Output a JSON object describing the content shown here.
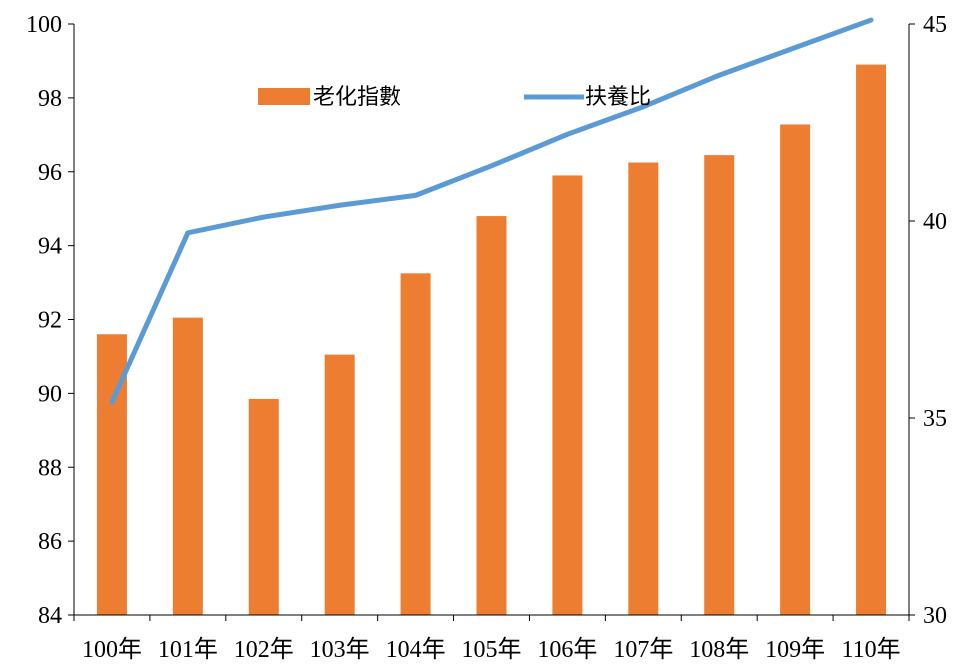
{
  "chart_data": {
    "type": "bar",
    "categories": [
      "100年",
      "101年",
      "102年",
      "103年",
      "104年",
      "105年",
      "106年",
      "107年",
      "108年",
      "109年",
      "110年"
    ],
    "series": [
      {
        "name": "老化指數",
        "type": "bar",
        "axis": "left",
        "color": "#ED7D31",
        "values": [
          91.6,
          92.05,
          89.85,
          91.05,
          93.25,
          94.8,
          95.9,
          96.25,
          96.45,
          97.28,
          98.9
        ]
      },
      {
        "name": "扶養比",
        "type": "line",
        "axis": "right",
        "color": "#5B9BD5",
        "values": [
          35.4,
          39.7,
          40.1,
          40.4,
          40.65,
          41.4,
          42.2,
          42.9,
          43.7,
          44.4,
          45.1
        ]
      }
    ],
    "left_axis": {
      "min": 84,
      "max": 100,
      "ticks": [
        "84",
        "86",
        "88",
        "90",
        "92",
        "94",
        "96",
        "98",
        "100"
      ]
    },
    "right_axis": {
      "min": 30,
      "max": 45,
      "ticks": [
        "30",
        "35",
        "40",
        "45"
      ]
    },
    "legend_placement": "top",
    "grid": false
  }
}
